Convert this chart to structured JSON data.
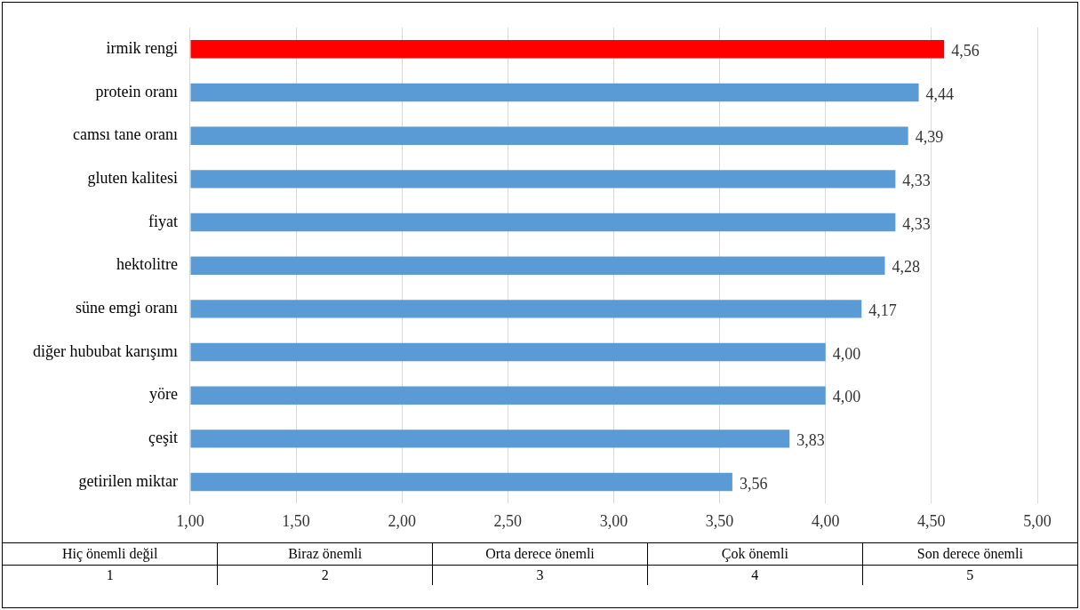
{
  "chart_data": {
    "type": "bar",
    "orientation": "horizontal",
    "categories": [
      "irmik rengi",
      "protein oranı",
      "camsı tane oranı",
      "gluten kalitesi",
      "fiyat",
      "hektolitre",
      "süne emgi oranı",
      "diğer hububat karışımı",
      "yöre",
      "çeşit",
      "getirilen miktar"
    ],
    "values": [
      4.56,
      4.44,
      4.39,
      4.33,
      4.33,
      4.28,
      4.17,
      4.0,
      4.0,
      3.83,
      3.56
    ],
    "colors": [
      "#ff0000",
      "#5b9bd5",
      "#5b9bd5",
      "#5b9bd5",
      "#5b9bd5",
      "#5b9bd5",
      "#5b9bd5",
      "#5b9bd5",
      "#5b9bd5",
      "#5b9bd5",
      "#5b9bd5"
    ],
    "value_labels": [
      "4,56",
      "4,44",
      "4,39",
      "4,33",
      "4,33",
      "4,28",
      "4,17",
      "4,00",
      "4,00",
      "3,83",
      "3,56"
    ],
    "xlim": [
      1,
      5
    ],
    "xticks": [
      {
        "value": 1,
        "label": "1,00"
      },
      {
        "value": 1.5,
        "label": "1,50"
      },
      {
        "value": 2,
        "label": "2,00"
      },
      {
        "value": 2.5,
        "label": "2,50"
      },
      {
        "value": 3,
        "label": "3,00"
      },
      {
        "value": 3.5,
        "label": "3,50"
      },
      {
        "value": 4,
        "label": "4,00"
      },
      {
        "value": 4.5,
        "label": "4,50"
      },
      {
        "value": 5,
        "label": "5,00"
      }
    ],
    "grid": "x",
    "annotations": [
      "Hiç önemli değil",
      "Biraz önemli",
      "Orta derece önemli",
      "Çok önemli",
      "Son derece önemli",
      "1",
      "2",
      "3",
      "4",
      "5"
    ]
  }
}
